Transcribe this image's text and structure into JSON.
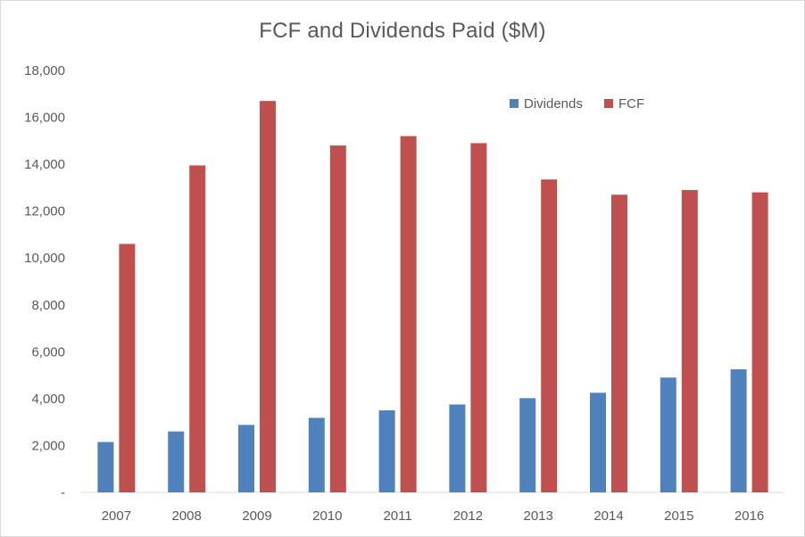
{
  "chart_data": {
    "type": "bar",
    "title": "FCF and Dividends Paid ($M)",
    "xlabel": "",
    "ylabel": "",
    "categories": [
      "2007",
      "2008",
      "2009",
      "2010",
      "2011",
      "2012",
      "2013",
      "2014",
      "2015",
      "2016"
    ],
    "series": [
      {
        "name": "Dividends",
        "color": "#4f81bd",
        "values": [
          2150,
          2600,
          2880,
          3180,
          3500,
          3750,
          4020,
          4250,
          4900,
          5250
        ]
      },
      {
        "name": "FCF",
        "color": "#c0504d",
        "values": [
          10600,
          13950,
          16700,
          14800,
          15200,
          14900,
          13350,
          12700,
          12900,
          12800
        ]
      }
    ],
    "ylim": [
      0,
      18000
    ],
    "y_ticks": [
      0,
      2000,
      4000,
      6000,
      8000,
      10000,
      12000,
      14000,
      16000,
      18000
    ],
    "y_tick_labels": [
      "-",
      "2,000",
      "4,000",
      "6,000",
      "8,000",
      "10,000",
      "12,000",
      "14,000",
      "16,000",
      "18,000"
    ],
    "grid": false,
    "legend_position": "top-right"
  }
}
